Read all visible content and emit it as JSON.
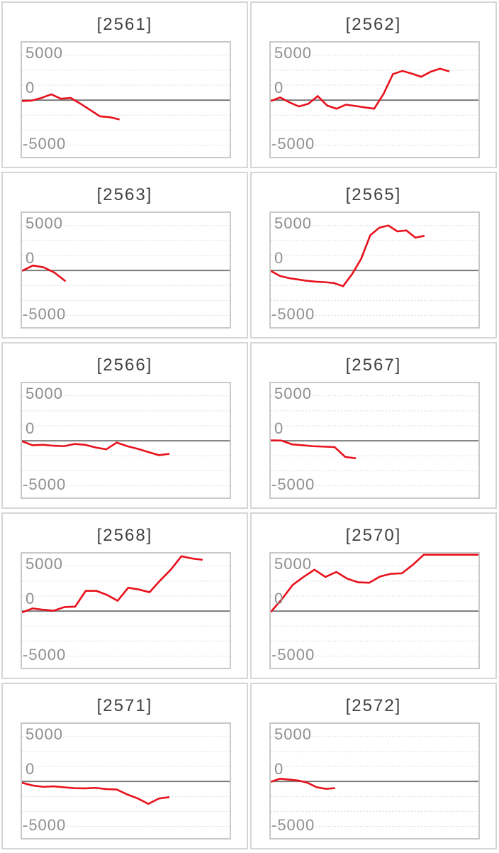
{
  "colors": {
    "line": "#e8111c",
    "grid": "#d9d9d9",
    "zero_line": "#7b7b7b",
    "plot_border": "#c9c9c9",
    "tile_border": "#d6d6d6",
    "title_text": "#3f3f3f",
    "axis_text": "#8f8f8f"
  },
  "axis": {
    "ymin": -6300,
    "ymax": 6400,
    "gridlines": [
      5000,
      3333,
      1667,
      -1667,
      -3333,
      -5000
    ],
    "zero_value": 0,
    "tick_labels": [
      {
        "value": 5000,
        "label": "5000"
      },
      {
        "value": 0,
        "label": "0"
      },
      {
        "value": -5000,
        "label": "-5000"
      }
    ]
  },
  "chart_data": [
    {
      "type": "line",
      "title": "[2561]",
      "ylim": [
        -6300,
        6400
      ],
      "yticks": [
        5000,
        0,
        -5000
      ],
      "grid": true,
      "x_end_fraction": 0.47,
      "values": [
        -100,
        -50,
        250,
        650,
        150,
        250,
        -400,
        -1100,
        -1800,
        -1900,
        -2150
      ]
    },
    {
      "type": "line",
      "title": "[2562]",
      "ylim": [
        -6300,
        6400
      ],
      "yticks": [
        5000,
        0,
        -5000
      ],
      "grid": true,
      "x_end_fraction": 0.86,
      "values": [
        -100,
        300,
        -250,
        -700,
        -400,
        450,
        -600,
        -950,
        -500,
        -650,
        -800,
        -950,
        700,
        2900,
        3250,
        2950,
        2600,
        3150,
        3500,
        3200
      ]
    },
    {
      "type": "line",
      "title": "[2563]",
      "ylim": [
        -6300,
        6400
      ],
      "yticks": [
        5000,
        0,
        -5000
      ],
      "grid": true,
      "x_end_fraction": 0.21,
      "values": [
        -50,
        550,
        350,
        -250,
        -1200
      ]
    },
    {
      "type": "line",
      "title": "[2565]",
      "ylim": [
        -6300,
        6400
      ],
      "yticks": [
        5000,
        0,
        -5000
      ],
      "grid": true,
      "x_end_fraction": 0.74,
      "values": [
        -50,
        -600,
        -850,
        -1000,
        -1150,
        -1250,
        -1300,
        -1400,
        -1750,
        -400,
        1300,
        3900,
        4750,
        5000,
        4350,
        4450,
        3650,
        3850
      ]
    },
    {
      "type": "line",
      "title": "[2566]",
      "ylim": [
        -6300,
        6400
      ],
      "yticks": [
        5000,
        0,
        -5000
      ],
      "grid": true,
      "x_end_fraction": 0.71,
      "values": [
        -50,
        -500,
        -450,
        -550,
        -600,
        -350,
        -450,
        -750,
        -950,
        -200,
        -600,
        -900,
        -1250,
        -1600,
        -1450
      ]
    },
    {
      "type": "line",
      "title": "[2567]",
      "ylim": [
        -6300,
        6400
      ],
      "yticks": [
        5000,
        0,
        -5000
      ],
      "grid": true,
      "x_end_fraction": 0.41,
      "values": [
        50,
        30,
        -400,
        -500,
        -600,
        -650,
        -700,
        -1800,
        -1950
      ]
    },
    {
      "type": "line",
      "title": "[2568]",
      "ylim": [
        -6300,
        6400
      ],
      "yticks": [
        5000,
        0,
        -5000
      ],
      "grid": true,
      "x_end_fraction": 0.87,
      "values": [
        -150,
        300,
        150,
        50,
        450,
        500,
        2250,
        2250,
        1800,
        1150,
        2600,
        2400,
        2100,
        3400,
        4600,
        6100,
        5850,
        5700
      ]
    },
    {
      "type": "line",
      "title": "[2570]",
      "ylim": [
        -6300,
        6400
      ],
      "yticks": [
        5000,
        0,
        -5000
      ],
      "grid": true,
      "x_end_fraction": 1.0,
      "values": [
        -100,
        1300,
        2900,
        3800,
        4600,
        3800,
        4350,
        3600,
        3200,
        3150,
        3850,
        4150,
        4200,
        5150,
        6270,
        6270,
        6270,
        6270,
        6270,
        6270
      ]
    },
    {
      "type": "line",
      "title": "[2571]",
      "ylim": [
        -6300,
        6400
      ],
      "yticks": [
        5000,
        0,
        -5000
      ],
      "grid": true,
      "x_end_fraction": 0.71,
      "values": [
        -150,
        -450,
        -600,
        -550,
        -650,
        -750,
        -770,
        -720,
        -850,
        -900,
        -1450,
        -1900,
        -2500,
        -1900,
        -1750
      ]
    },
    {
      "type": "line",
      "title": "[2572]",
      "ylim": [
        -6300,
        6400
      ],
      "yticks": [
        5000,
        0,
        -5000
      ],
      "grid": true,
      "x_end_fraction": 0.31,
      "values": [
        -50,
        300,
        200,
        100,
        -150,
        -650,
        -820,
        -750
      ]
    }
  ]
}
